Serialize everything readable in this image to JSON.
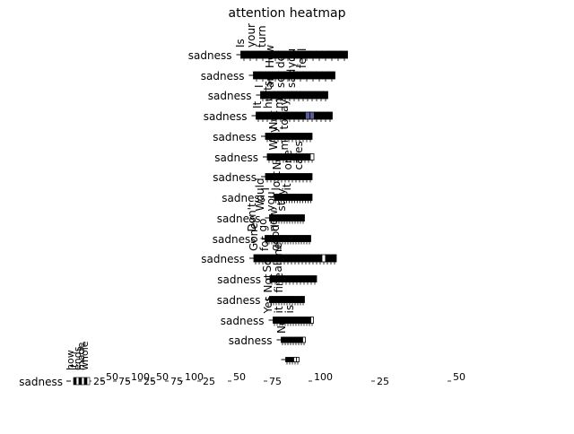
{
  "chart_data": {
    "type": "heatmap",
    "title": "attention heatmap",
    "row_label": "sadness",
    "colorbar_ticks": [
      "25",
      "50",
      "75",
      "100"
    ],
    "rows": [
      {
        "row": "sadness",
        "words": [
          "Is",
          "your",
          "turn"
        ],
        "cells": [
          1,
          1,
          1,
          1,
          1,
          1,
          1,
          1,
          1,
          1,
          1,
          1,
          1,
          1,
          1,
          1,
          1
        ]
      },
      {
        "row": "sadness",
        "words": [
          "How",
          "do",
          "you",
          "feel"
        ],
        "cells": [
          1,
          1,
          1,
          1,
          1,
          1,
          1,
          1,
          1,
          1,
          1,
          1,
          1
        ]
      },
      {
        "row": "sadness",
        "words": [
          "I",
          "am",
          "so",
          "sad"
        ],
        "cells": [
          1,
          1,
          1,
          1,
          1,
          1,
          1,
          1,
          1,
          1,
          1,
          1,
          1,
          1,
          1
        ]
      },
      {
        "row": "sadness",
        "words": [
          "It",
          "hurts",
          "me"
        ],
        "cells": [
          1,
          1,
          1,
          1,
          1,
          1,
          1,
          1,
          1,
          1,
          1,
          0.85,
          0.3,
          1,
          1,
          1,
          1
        ]
      },
      {
        "row": "sadness",
        "words": [
          "Not",
          "today"
        ],
        "cells": [
          1,
          1,
          1,
          1,
          1,
          1,
          1,
          1,
          1,
          1,
          1,
          1,
          1
        ]
      },
      {
        "row": "sadness",
        "words": [
          "Why",
          "me"
        ],
        "cells": [
          1,
          1,
          1,
          1,
          1,
          1,
          1,
          1,
          1,
          1,
          1,
          1,
          0
        ]
      },
      {
        "row": "sadness",
        "words": [
          "No",
          "one",
          "cares"
        ],
        "cells": [
          1,
          1,
          1,
          1,
          1,
          1,
          1,
          1,
          1,
          1,
          1,
          1,
          1
        ]
      },
      {
        "row": "sadness",
        "words": [
          "I",
          "lost",
          "it"
        ],
        "cells": [
          1,
          1,
          1,
          1,
          1,
          1,
          1,
          1,
          1,
          1,
          1,
          1,
          1,
          1
        ]
      },
      {
        "row": "sadness",
        "words": [
          "Would",
          "you",
          "stay"
        ],
        "cells": [
          1,
          1,
          1,
          1,
          1,
          1,
          1,
          1,
          1,
          1,
          1,
          1,
          1
        ]
      },
      {
        "row": "sadness",
        "words": [
          "Don't",
          "go",
          "now"
        ],
        "cells": [
          1,
          1,
          1,
          1,
          1,
          1,
          1,
          1,
          1,
          1,
          1,
          1,
          1,
          1,
          1,
          1,
          1
        ]
      },
      {
        "row": "sadness",
        "words": [
          "Gone",
          "for",
          "good"
        ],
        "cells": [
          1,
          1,
          1,
          1,
          1,
          1,
          1,
          1,
          1,
          1,
          1,
          1,
          1,
          1,
          1,
          1,
          1,
          1,
          1,
          0,
          1,
          1,
          1
        ]
      },
      {
        "row": "sadness",
        "words": [
          "So",
          "alone"
        ],
        "cells": [
          1,
          1,
          1,
          1,
          1,
          1,
          1,
          1,
          1,
          1,
          1,
          1,
          1
        ]
      },
      {
        "row": "sadness",
        "words": [
          "Not",
          "fine"
        ],
        "cells": [
          1,
          1,
          1,
          1,
          1,
          1,
          1,
          1,
          1,
          1,
          1,
          1,
          1
        ]
      },
      {
        "row": "sadness",
        "words": [
          "Yes",
          "it",
          "is"
        ],
        "cells": [
          1,
          1,
          1,
          1,
          1,
          1,
          1,
          1,
          1,
          1,
          1,
          1,
          1,
          1,
          0
        ]
      },
      {
        "row": "sadness",
        "words": [
          "No"
        ],
        "cells": [
          1,
          1,
          1,
          1,
          1,
          1,
          1,
          1,
          0
        ]
      },
      {
        "row": "",
        "words": [],
        "cells": [
          1,
          1,
          1,
          0,
          0
        ]
      }
    ],
    "bottom_words": [
      "how",
      "it",
      "ends",
      "made",
      "whole"
    ],
    "colors": {
      "high": "#000000",
      "mid": "#595c99",
      "low": "#ffffff",
      "frame": "#000000"
    }
  }
}
